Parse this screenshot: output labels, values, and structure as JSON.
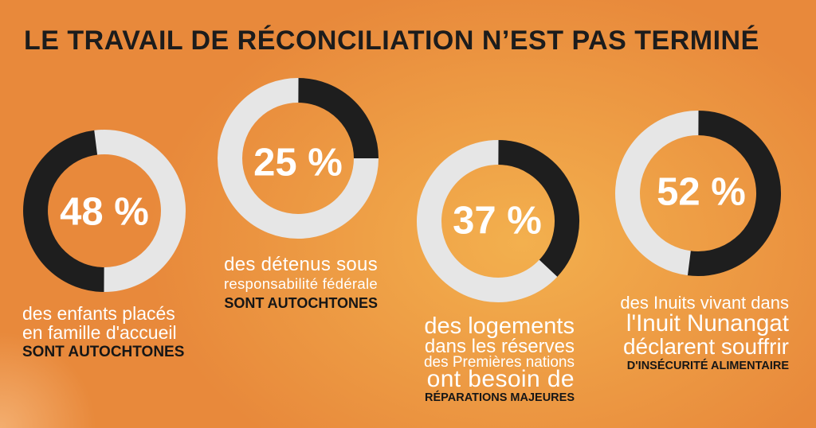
{
  "title": "LE TRAVAIL DE RÉCONCILIATION N’EST PAS TERMINÉ",
  "colors": {
    "background": "#E8893B",
    "glow": "#F3B04E",
    "title": "#1C1C1C",
    "caption_text": "#FFFFFF",
    "emphasis_text": "#161616"
  },
  "chart_data": [
    {
      "type": "pie",
      "donut": true,
      "center_label": "48 %",
      "values": [
        48,
        52
      ],
      "colors": [
        "#1E1E1E",
        "#E6E6E6"
      ],
      "caption": {
        "lines": [
          "des enfants placés",
          "en famille d'accueil"
        ],
        "emphasis": "SONT AUTOCHTONES"
      }
    },
    {
      "type": "pie",
      "donut": true,
      "center_label": "25 %",
      "values": [
        25,
        75
      ],
      "colors": [
        "#1E1E1E",
        "#E6E6E6"
      ],
      "caption": {
        "lines": [
          "des détenus sous",
          "responsabilité fédérale"
        ],
        "emphasis": "SONT AUTOCHTONES"
      }
    },
    {
      "type": "pie",
      "donut": true,
      "center_label": "37 %",
      "values": [
        37,
        63
      ],
      "colors": [
        "#1E1E1E",
        "#E6E6E6"
      ],
      "caption": {
        "lines": [
          "des logements",
          "dans les réserves",
          "des Premières nations",
          "ont besoin de"
        ],
        "emphasis": "RÉPARATIONS MAJEURES"
      }
    },
    {
      "type": "pie",
      "donut": true,
      "center_label": "52 %",
      "values": [
        52,
        48
      ],
      "colors": [
        "#1E1E1E",
        "#E6E6E6"
      ],
      "caption": {
        "lines": [
          "des Inuits vivant dans",
          "l'Inuit Nunangat",
          "déclarent souffrir"
        ],
        "emphasis": "D'INSÉCURITÉ ALIMENTAIRE"
      }
    }
  ]
}
